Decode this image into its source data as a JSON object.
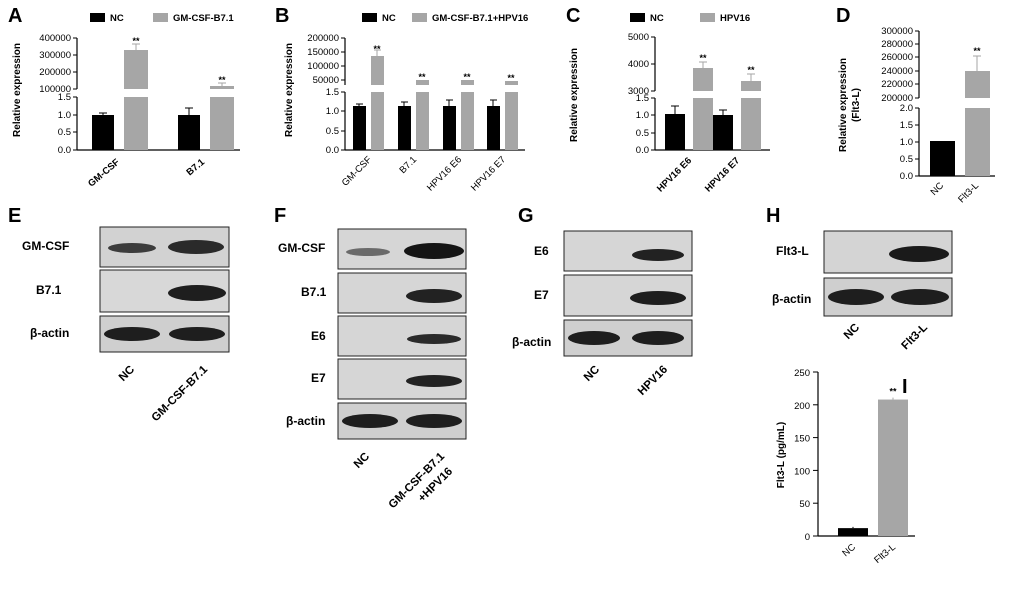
{
  "panels": {
    "A": {
      "letter": "A",
      "legend": [
        "NC",
        "GM-CSF-B7.1"
      ],
      "ylabel": "Relative expression",
      "top_ticks": [
        "400000",
        "300000",
        "200000",
        "100000"
      ],
      "bottom_ticks": [
        "1.5",
        "1.0",
        "0.5",
        "0.0"
      ],
      "categories": [
        "GM-CSF",
        "B7.1"
      ],
      "sig": [
        "**",
        "**"
      ]
    },
    "B": {
      "letter": "B",
      "legend": [
        "NC",
        "GM-CSF-B7.1+HPV16"
      ],
      "ylabel": "Relative expression",
      "top_ticks": [
        "200000",
        "150000",
        "100000",
        "50000"
      ],
      "bottom_ticks": [
        "1.5",
        "1.0",
        "0.5",
        "0.0"
      ],
      "categories": [
        "GM-CSF",
        "B7.1",
        "HPV16 E6",
        "HPV16 E7"
      ],
      "sig": [
        "**",
        "**",
        "**",
        "**"
      ]
    },
    "C": {
      "letter": "C",
      "legend": [
        "NC",
        "HPV16"
      ],
      "ylabel": "Relative expression",
      "top_ticks": [
        "5000",
        "4000",
        "3000"
      ],
      "bottom_ticks": [
        "1.5",
        "1.0",
        "0.5",
        "0.0"
      ],
      "categories": [
        "HPV16 E6",
        "HPV16 E7"
      ],
      "sig": [
        "**",
        "**"
      ]
    },
    "D": {
      "letter": "D",
      "ylabel": "Relative expression",
      "ylabel2": "(Flt3-L)",
      "top_ticks": [
        "300000",
        "280000",
        "260000",
        "240000",
        "220000",
        "200000"
      ],
      "bottom_ticks": [
        "2.0",
        "1.5",
        "1.0",
        "0.5",
        "0.0"
      ],
      "categories": [
        "NC",
        "Flt3-L"
      ],
      "sig": [
        "**"
      ]
    },
    "E": {
      "letter": "E",
      "bands": [
        "GM-CSF",
        "B7.1",
        "β-actin"
      ],
      "lanes": [
        "NC",
        "GM-CSF-B7.1"
      ]
    },
    "F": {
      "letter": "F",
      "bands": [
        "GM-CSF",
        "B7.1",
        "E6",
        "E7",
        "β-actin"
      ],
      "lanes": [
        "NC",
        "GM-CSF-B7.1",
        "+HPV16"
      ]
    },
    "G": {
      "letter": "G",
      "bands": [
        "E6",
        "E7",
        "β-actin"
      ],
      "lanes": [
        "NC",
        "HPV16"
      ]
    },
    "H": {
      "letter": "H",
      "bands": [
        "Flt3-L",
        "β-actin"
      ],
      "lanes": [
        "NC",
        "Flt3-L"
      ]
    },
    "I": {
      "letter": "I",
      "ylabel": "Flt3-L (pg/mL)",
      "ticks": [
        "250",
        "200",
        "150",
        "100",
        "50",
        "0"
      ],
      "categories": [
        "NC",
        "Flt3-L"
      ],
      "sig": [
        "**"
      ]
    }
  },
  "colors": {
    "nc": "#000000",
    "treated": "#a6a6a6",
    "blot_bg": "#d2d2d2",
    "band": "#1e1e1e"
  },
  "chart_data": [
    {
      "type": "bar",
      "panel": "A",
      "categories": [
        "GM-CSF",
        "B7.1"
      ],
      "series": [
        {
          "name": "NC",
          "values": [
            1.0,
            1.0
          ],
          "errors": [
            0.03,
            0.15
          ]
        },
        {
          "name": "GM-CSF-B7.1",
          "values": [
            320000,
            95000
          ],
          "errors": [
            25000,
            10000
          ]
        }
      ],
      "ylabel": "Relative expression",
      "broken_y_axis": true,
      "ylim_lower": [
        0,
        1.5
      ],
      "ylim_upper": [
        100000,
        400000
      ]
    },
    {
      "type": "bar",
      "panel": "B",
      "categories": [
        "GM-CSF",
        "B7.1",
        "HPV16 E6",
        "HPV16 E7"
      ],
      "series": [
        {
          "name": "NC",
          "values": [
            1.0,
            1.0,
            1.0,
            1.0
          ],
          "errors": [
            0.05,
            0.1,
            0.15,
            0.15
          ]
        },
        {
          "name": "GM-CSF-B7.1+HPV16",
          "values": [
            135000,
            40000,
            40000,
            30000
          ],
          "errors": [
            20000,
            3000,
            5000,
            3000
          ]
        }
      ],
      "ylabel": "Relative expression",
      "broken_y_axis": true,
      "ylim_lower": [
        0,
        1.5
      ],
      "ylim_upper": [
        50000,
        200000
      ]
    },
    {
      "type": "bar",
      "panel": "C",
      "categories": [
        "HPV16 E6",
        "HPV16 E7"
      ],
      "series": [
        {
          "name": "NC",
          "values": [
            1.05,
            1.0
          ],
          "errors": [
            0.25,
            0.15
          ]
        },
        {
          "name": "HPV16",
          "values": [
            3850,
            3350
          ],
          "errors": [
            250,
            250
          ]
        }
      ],
      "ylabel": "Relative expression",
      "broken_y_axis": true,
      "ylim_lower": [
        0,
        1.5
      ],
      "ylim_upper": [
        3000,
        5000
      ]
    },
    {
      "type": "bar",
      "panel": "D",
      "categories": [
        "NC",
        "Flt3-L"
      ],
      "values": [
        1.0,
        240000
      ],
      "errors": [
        0.0,
        25000
      ],
      "ylabel": "Relative expression (Flt3-L)",
      "broken_y_axis": true,
      "ylim_lower": [
        0,
        2.0
      ],
      "ylim_upper": [
        200000,
        300000
      ]
    },
    {
      "type": "bar",
      "panel": "I",
      "categories": [
        "NC",
        "Flt3-L"
      ],
      "values": [
        12,
        208
      ],
      "errors": [
        2,
        3
      ],
      "ylabel": "Flt3-L (pg/mL)",
      "ylim": [
        0,
        250
      ]
    }
  ]
}
